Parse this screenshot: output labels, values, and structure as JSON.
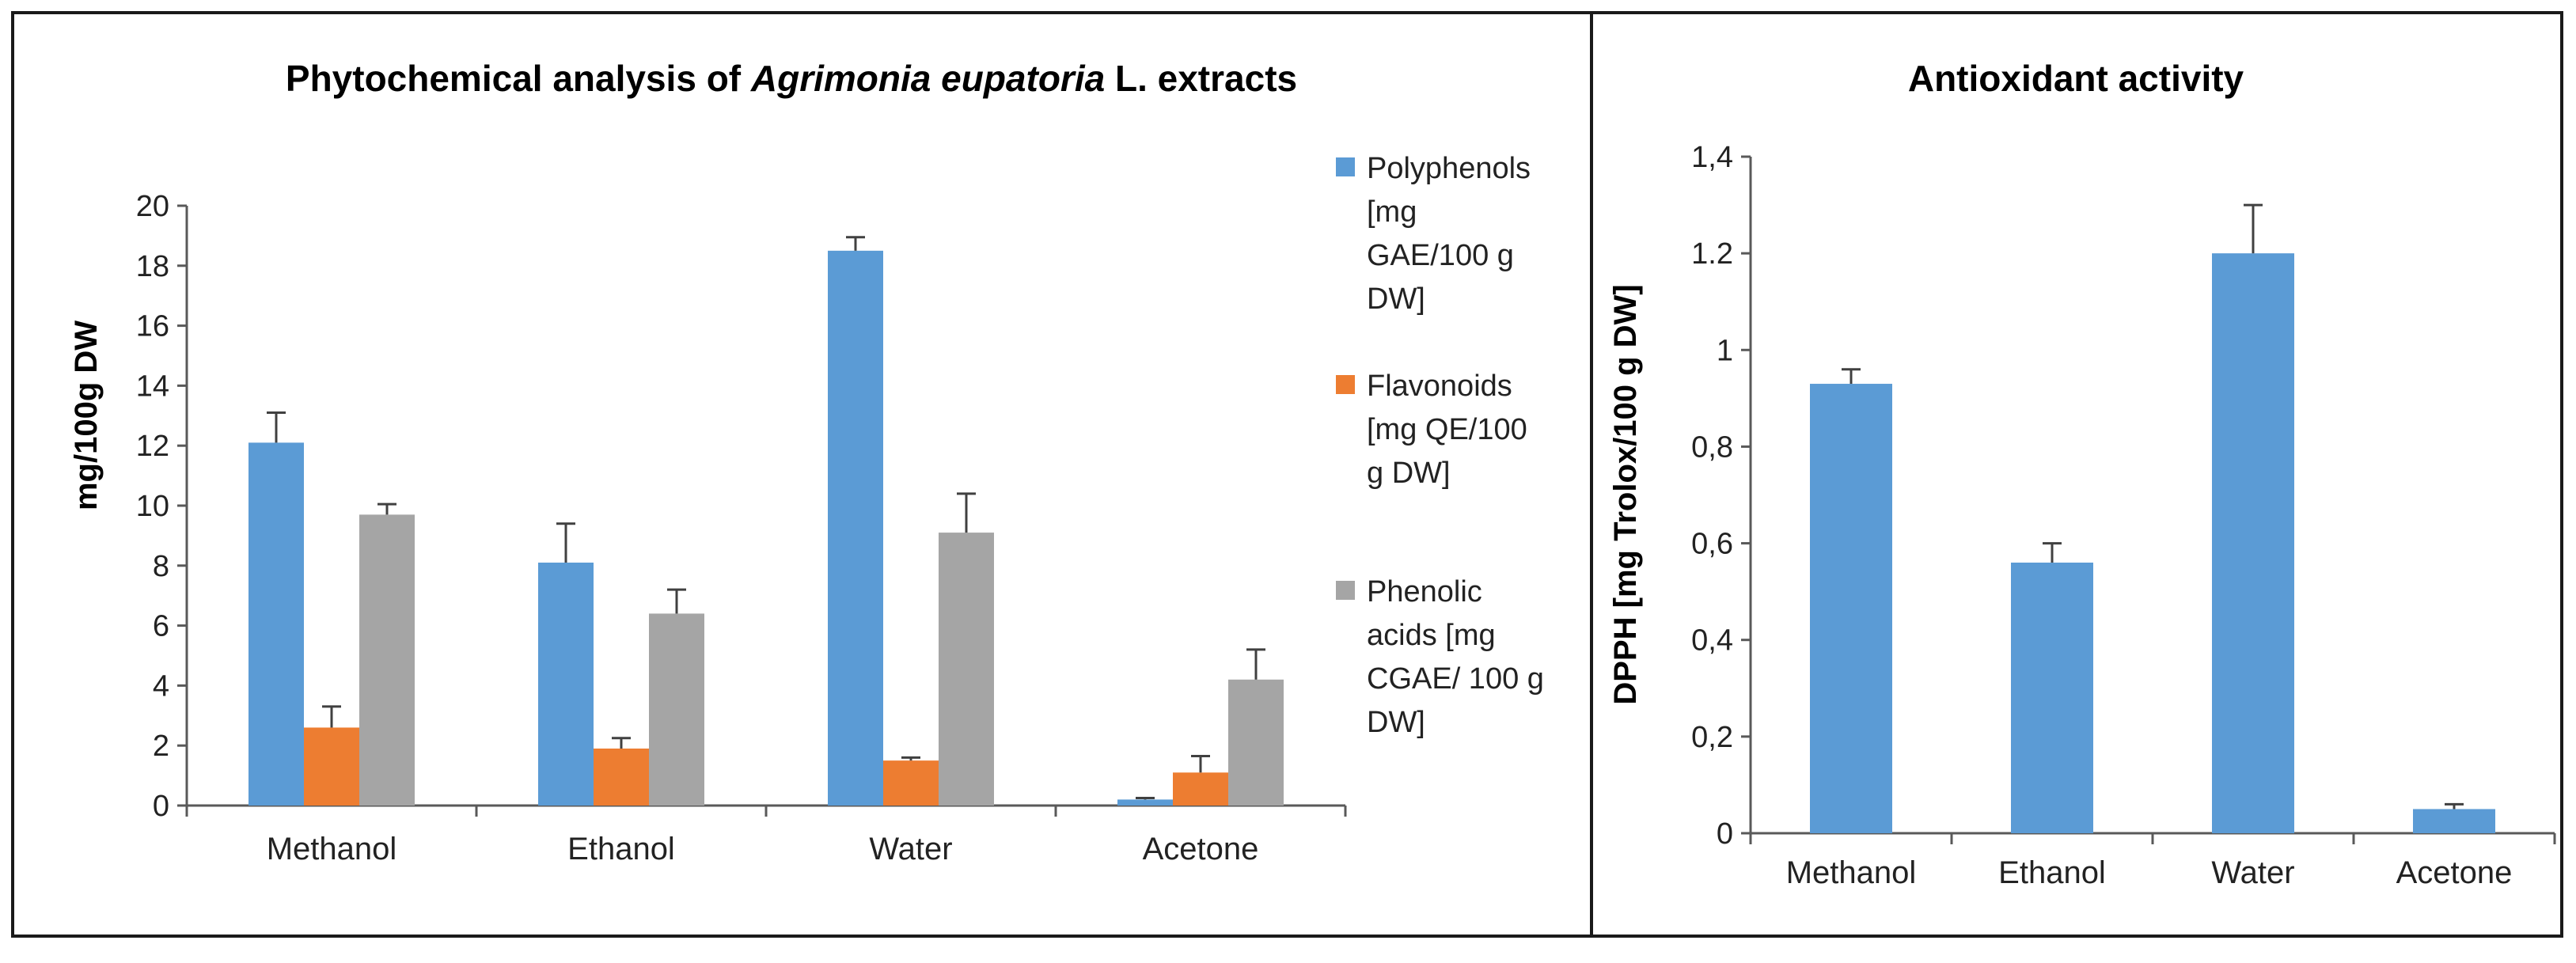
{
  "chart_data": [
    {
      "type": "bar",
      "title_parts": [
        "Phytochemical analysis of ",
        "Agrimonia eupatoria",
        " L. extracts"
      ],
      "xlabel": "",
      "ylabel": "mg/100g DW",
      "ylim": [
        0,
        20
      ],
      "yticks": [
        0,
        2,
        4,
        6,
        8,
        10,
        12,
        14,
        16,
        18,
        20
      ],
      "ytick_labels": [
        "0",
        "2",
        "4",
        "6",
        "8",
        "10",
        "12",
        "14",
        "16",
        "18",
        "20"
      ],
      "categories": [
        "Methanol",
        "Ethanol",
        "Water",
        "Acetone"
      ],
      "series": [
        {
          "name": "Polyphenols [mg GAE/100 g DW]",
          "legend_lines": [
            "Polyphenols",
            "[mg",
            "GAE/100 g",
            "DW]"
          ],
          "color": "#5B9BD5",
          "values": [
            12.1,
            8.1,
            18.5,
            0.2
          ],
          "errors": [
            1.0,
            1.3,
            0.45,
            0.05
          ]
        },
        {
          "name": "Flavonoids [mg QE/100 g DW]",
          "legend_lines": [
            "Flavonoids",
            "[mg QE/100",
            "g DW]"
          ],
          "color": "#ED7D31",
          "values": [
            2.6,
            1.9,
            1.5,
            1.1
          ],
          "errors": [
            0.7,
            0.35,
            0.1,
            0.55
          ]
        },
        {
          "name": "Phenolic acids [mg CGAE/ 100 g DW]",
          "legend_lines": [
            "Phenolic",
            "acids [mg",
            "CGAE/ 100 g",
            "DW]"
          ],
          "color": "#A5A5A5",
          "values": [
            9.7,
            6.4,
            9.1,
            4.2
          ],
          "errors": [
            0.35,
            0.8,
            1.3,
            1.0
          ]
        }
      ],
      "legend_position": "right",
      "grid": false
    },
    {
      "type": "bar",
      "title": "Antioxidant activity",
      "xlabel": "",
      "ylabel": "DPPH [mg Trolox/100 g DW]",
      "ylim": [
        0,
        1.4
      ],
      "yticks": [
        0,
        0.2,
        0.4,
        0.6,
        0.8,
        1.0,
        1.2,
        1.4
      ],
      "ytick_labels": [
        "0",
        "0,2",
        "0,4",
        "0,6",
        "0,8",
        "1",
        "1.2",
        "1,4"
      ],
      "categories": [
        "Methanol",
        "Ethanol",
        "Water",
        "Acetone"
      ],
      "series": [
        {
          "name": "DPPH",
          "color": "#5B9BD5",
          "values": [
            0.93,
            0.56,
            1.2,
            0.05
          ],
          "errors": [
            0.03,
            0.04,
            0.1,
            0.01
          ]
        }
      ],
      "grid": false
    }
  ]
}
